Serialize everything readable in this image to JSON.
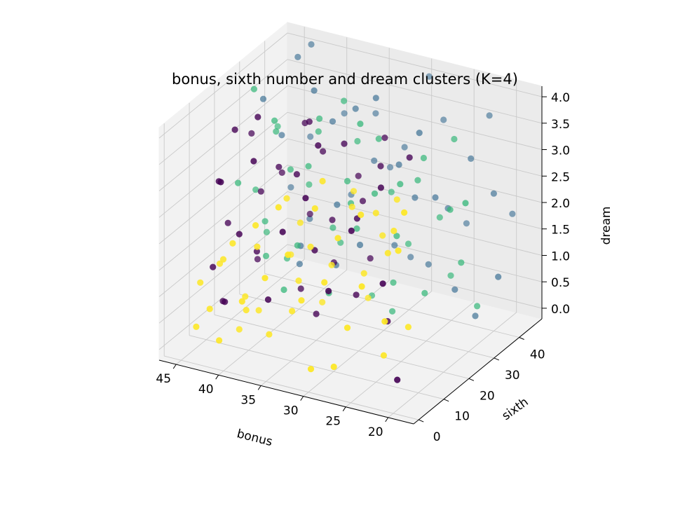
{
  "chart_data": {
    "type": "scatter",
    "projection": "3d",
    "title": "bonus, sixth number and dream clusters (K=4)",
    "xlabel": "bonus",
    "ylabel": "sixth",
    "zlabel": "dream",
    "xlim": [
      17,
      47
    ],
    "ylim": [
      -2,
      49
    ],
    "zlim": [
      -0.2,
      4.2
    ],
    "xticks": [
      "20",
      "25",
      "30",
      "35",
      "40",
      "45"
    ],
    "yticks": [
      "0",
      "10",
      "20",
      "30",
      "40"
    ],
    "zticks": [
      "0.0",
      "0.5",
      "1.0",
      "1.5",
      "2.0",
      "2.5",
      "3.0",
      "3.5",
      "4.0"
    ],
    "grid": true,
    "legend": false,
    "cluster_colors": [
      "#440154",
      "#31688e",
      "#35b779",
      "#fde725"
    ],
    "points": [
      [
        19,
        1,
        3.6,
        3
      ],
      [
        20,
        2,
        2.8,
        3
      ],
      [
        21,
        0,
        1.5,
        3
      ],
      [
        22,
        3,
        0.7,
        3
      ],
      [
        24,
        1,
        2.0,
        3
      ],
      [
        25,
        4,
        3.2,
        3
      ],
      [
        26,
        2,
        1.1,
        3
      ],
      [
        27,
        0,
        0.4,
        3
      ],
      [
        28,
        5,
        2.6,
        3
      ],
      [
        29,
        3,
        1.8,
        3
      ],
      [
        30,
        1,
        0.2,
        3
      ],
      [
        31,
        6,
        3.0,
        3
      ],
      [
        32,
        4,
        1.3,
        3
      ],
      [
        33,
        2,
        2.2,
        3
      ],
      [
        34,
        7,
        0.9,
        3
      ],
      [
        35,
        5,
        2.9,
        3
      ],
      [
        36,
        3,
        1.6,
        3
      ],
      [
        37,
        8,
        0.3,
        3
      ],
      [
        38,
        6,
        2.4,
        3
      ],
      [
        39,
        4,
        1.0,
        3
      ],
      [
        40,
        9,
        0.6,
        3
      ],
      [
        41,
        7,
        1.9,
        3
      ],
      [
        42,
        5,
        0.1,
        3
      ],
      [
        43,
        10,
        1.4,
        3
      ],
      [
        44,
        8,
        0.5,
        3
      ],
      [
        45,
        6,
        0.2,
        3
      ],
      [
        46,
        11,
        0.8,
        3
      ],
      [
        44,
        12,
        1.2,
        3
      ],
      [
        42,
        13,
        0.0,
        3
      ],
      [
        40,
        14,
        0.4,
        3
      ],
      [
        23,
        8,
        2.4,
        3
      ],
      [
        25,
        10,
        3.0,
        3
      ],
      [
        27,
        12,
        1.7,
        3
      ],
      [
        29,
        14,
        2.8,
        3
      ],
      [
        31,
        9,
        3.4,
        3
      ],
      [
        33,
        11,
        2.0,
        3
      ],
      [
        35,
        13,
        1.2,
        3
      ],
      [
        37,
        15,
        2.6,
        3
      ],
      [
        39,
        10,
        1.8,
        3
      ],
      [
        41,
        12,
        0.7,
        3
      ],
      [
        24,
        15,
        3.1,
        3
      ],
      [
        26,
        16,
        2.3,
        3
      ],
      [
        28,
        17,
        1.0,
        3
      ],
      [
        30,
        18,
        2.9,
        3
      ],
      [
        32,
        16,
        1.5,
        3
      ],
      [
        34,
        19,
        0.6,
        3
      ],
      [
        36,
        17,
        2.1,
        3
      ],
      [
        38,
        20,
        1.3,
        3
      ],
      [
        20,
        6,
        1.2,
        3
      ],
      [
        22,
        7,
        2.9,
        3
      ],
      [
        21,
        5,
        0.2,
        0
      ],
      [
        23,
        6,
        1.9,
        0
      ],
      [
        27,
        7,
        2.7,
        0
      ],
      [
        30,
        8,
        1.4,
        0
      ],
      [
        33,
        9,
        3.0,
        0
      ],
      [
        36,
        10,
        2.2,
        0
      ],
      [
        38,
        11,
        0.8,
        0
      ],
      [
        40,
        12,
        3.3,
        0
      ],
      [
        42,
        13,
        1.8,
        0
      ],
      [
        44,
        14,
        0.4,
        0
      ],
      [
        45,
        15,
        2.6,
        0
      ],
      [
        46,
        16,
        0.9,
        0
      ],
      [
        44,
        18,
        3.5,
        0
      ],
      [
        42,
        20,
        1.2,
        0
      ],
      [
        40,
        22,
        2.8,
        0
      ],
      [
        38,
        24,
        0.5,
        0
      ],
      [
        36,
        26,
        3.1,
        0
      ],
      [
        34,
        23,
        2.0,
        0
      ],
      [
        32,
        21,
        3.6,
        0
      ],
      [
        30,
        19,
        0.9,
        0
      ],
      [
        28,
        22,
        3.3,
        0
      ],
      [
        31,
        25,
        2.4,
        0
      ],
      [
        35,
        27,
        1.0,
        0
      ],
      [
        39,
        29,
        3.4,
        0
      ],
      [
        43,
        25,
        2.1,
        0
      ],
      [
        46,
        22,
        1.5,
        0
      ],
      [
        41,
        17,
        3.9,
        0
      ],
      [
        37,
        19,
        2.9,
        0
      ],
      [
        33,
        14,
        3.8,
        0
      ],
      [
        29,
        16,
        2.5,
        0
      ],
      [
        25,
        12,
        3.4,
        0
      ],
      [
        26,
        18,
        0.6,
        0
      ],
      [
        35,
        20,
        0.3,
        0
      ],
      [
        44,
        27,
        0.7,
        0
      ],
      [
        39,
        31,
        1.6,
        0
      ],
      [
        42,
        30,
        2.3,
        0
      ],
      [
        45,
        28,
        3.0,
        0
      ],
      [
        24,
        20,
        3.7,
        0
      ],
      [
        31,
        28,
        1.2,
        0
      ],
      [
        37,
        24,
        3.7,
        0
      ],
      [
        33,
        30,
        2.6,
        0
      ],
      [
        29,
        27,
        3.6,
        0
      ],
      [
        46,
        20,
        0.1,
        0
      ],
      [
        43,
        9,
        2.9,
        0
      ],
      [
        34,
        16,
        1.7,
        0
      ],
      [
        18,
        35,
        1.1,
        1
      ],
      [
        20,
        40,
        2.4,
        1
      ],
      [
        22,
        45,
        3.6,
        1
      ],
      [
        24,
        38,
        0.5,
        1
      ],
      [
        26,
        42,
        1.8,
        1
      ],
      [
        28,
        47,
        3.2,
        1
      ],
      [
        30,
        36,
        2.7,
        1
      ],
      [
        32,
        41,
        0.9,
        1
      ],
      [
        34,
        46,
        2.1,
        1
      ],
      [
        36,
        39,
        3.4,
        1
      ],
      [
        38,
        44,
        1.5,
        1
      ],
      [
        40,
        48,
        2.8,
        1
      ],
      [
        42,
        37,
        0.3,
        1
      ],
      [
        44,
        43,
        3.9,
        1
      ],
      [
        46,
        47,
        1.2,
        1
      ],
      [
        45,
        40,
        2.5,
        1
      ],
      [
        43,
        45,
        4.1,
        1
      ],
      [
        41,
        34,
        0.8,
        1
      ],
      [
        39,
        40,
        3.0,
        1
      ],
      [
        37,
        35,
        1.7,
        1
      ],
      [
        35,
        43,
        2.3,
        1
      ],
      [
        33,
        37,
        3.8,
        1
      ],
      [
        31,
        44,
        0.6,
        1
      ],
      [
        29,
        39,
        2.0,
        1
      ],
      [
        27,
        34,
        3.5,
        1
      ],
      [
        25,
        46,
        1.4,
        1
      ],
      [
        23,
        41,
        2.9,
        1
      ],
      [
        21,
        36,
        0.2,
        1
      ],
      [
        19,
        44,
        1.9,
        1
      ],
      [
        46,
        36,
        3.3,
        1
      ],
      [
        44,
        48,
        2.2,
        1
      ],
      [
        42,
        41,
        1.0,
        1
      ],
      [
        40,
        36,
        3.7,
        1
      ],
      [
        38,
        38,
        0.4,
        1
      ],
      [
        36,
        47,
        3.0,
        1
      ],
      [
        34,
        34,
        1.1,
        1
      ],
      [
        32,
        45,
        2.6,
        1
      ],
      [
        30,
        48,
        3.9,
        1
      ],
      [
        28,
        41,
        0.7,
        1
      ],
      [
        26,
        37,
        2.2,
        1
      ],
      [
        18,
        22,
        3.0,
        2
      ],
      [
        20,
        27,
        1.6,
        2
      ],
      [
        22,
        31,
        3.7,
        2
      ],
      [
        24,
        26,
        0.9,
        2
      ],
      [
        26,
        30,
        2.8,
        2
      ],
      [
        28,
        33,
        1.4,
        2
      ],
      [
        30,
        28,
        3.5,
        2
      ],
      [
        32,
        32,
        0.3,
        2
      ],
      [
        34,
        29,
        2.5,
        2
      ],
      [
        36,
        33,
        1.1,
        2
      ],
      [
        38,
        31,
        3.2,
        2
      ],
      [
        40,
        34,
        2.0,
        2
      ],
      [
        42,
        32,
        0.6,
        2
      ],
      [
        44,
        35,
        2.9,
        2
      ],
      [
        46,
        33,
        1.7,
        2
      ],
      [
        45,
        29,
        3.8,
        2
      ],
      [
        43,
        27,
        0.8,
        2
      ],
      [
        41,
        30,
        2.4,
        2
      ],
      [
        39,
        26,
        1.2,
        2
      ],
      [
        37,
        28,
        3.6,
        2
      ],
      [
        35,
        25,
        0.5,
        2
      ],
      [
        33,
        27,
        2.2,
        2
      ],
      [
        31,
        24,
        3.9,
        2
      ],
      [
        29,
        30,
        0.2,
        2
      ],
      [
        27,
        25,
        1.9,
        2
      ],
      [
        25,
        29,
        3.3,
        2
      ],
      [
        23,
        33,
        1.0,
        2
      ],
      [
        21,
        26,
        2.6,
        2
      ],
      [
        19,
        30,
        0.7,
        2
      ],
      [
        46,
        26,
        2.1,
        2
      ],
      [
        44,
        30,
        1.3,
        2
      ],
      [
        42,
        27,
        3.4,
        2
      ],
      [
        40,
        24,
        0.4,
        2
      ],
      [
        38,
        27,
        2.7,
        2
      ],
      [
        36,
        30,
        1.5,
        2
      ],
      [
        34,
        33,
        3.1,
        2
      ],
      [
        32,
        26,
        1.8,
        2
      ],
      [
        30,
        33,
        2.3,
        2
      ],
      [
        28,
        27,
        0.9,
        2
      ],
      [
        26,
        23,
        3.0,
        2
      ],
      [
        24,
        32,
        2.1,
        2
      ],
      [
        45,
        34,
        0.9,
        2
      ],
      [
        43,
        31,
        3.0,
        2
      ],
      [
        35,
        31,
        3.9,
        2
      ],
      [
        29,
        23,
        2.7,
        2
      ]
    ]
  }
}
